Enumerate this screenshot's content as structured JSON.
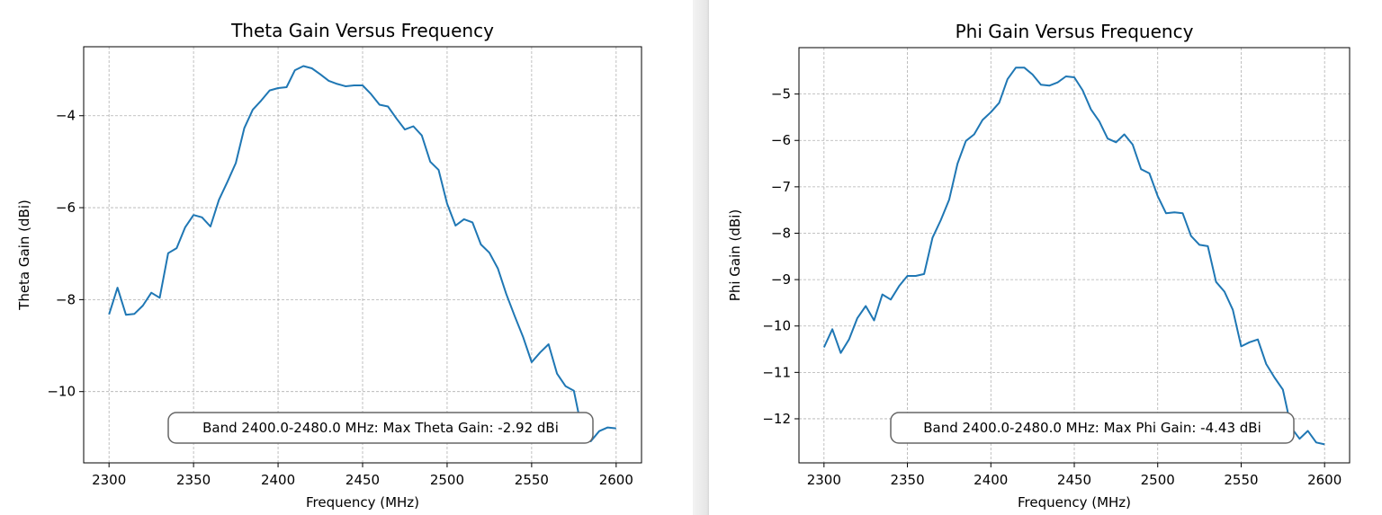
{
  "chart_data": [
    {
      "type": "line",
      "title": "Theta Gain Versus Frequency",
      "xlabel": "Frequency (MHz)",
      "ylabel": "Theta Gain (dBi)",
      "xlim": [
        2285,
        2615
      ],
      "ylim": [
        -11.55,
        -2.5
      ],
      "xticks": [
        2300,
        2350,
        2400,
        2450,
        2500,
        2550,
        2600
      ],
      "yticks": [
        -10,
        -8,
        -6,
        -4
      ],
      "grid": true,
      "line_color": "#1f77b4",
      "annotation": "Band 2400.0-2480.0 MHz: Max Theta Gain: -2.92 dBi",
      "annotation_position": "bottom-center",
      "x": [
        2300,
        2305,
        2310,
        2315,
        2320,
        2325,
        2330,
        2335,
        2340,
        2345,
        2350,
        2355,
        2360,
        2365,
        2370,
        2375,
        2380,
        2385,
        2390,
        2395,
        2400,
        2405,
        2410,
        2415,
        2420,
        2425,
        2430,
        2435,
        2440,
        2445,
        2450,
        2455,
        2460,
        2465,
        2470,
        2475,
        2480,
        2485,
        2490,
        2495,
        2500,
        2505,
        2510,
        2515,
        2520,
        2525,
        2530,
        2535,
        2540,
        2545,
        2550,
        2555,
        2560,
        2565,
        2570,
        2575,
        2580,
        2585,
        2590,
        2595,
        2600
      ],
      "y": [
        -8.32,
        -7.74,
        -8.33,
        -8.31,
        -8.13,
        -7.85,
        -7.96,
        -6.99,
        -6.88,
        -6.43,
        -6.16,
        -6.21,
        -6.41,
        -5.83,
        -5.44,
        -5.03,
        -4.27,
        -3.87,
        -3.67,
        -3.45,
        -3.4,
        -3.38,
        -3.01,
        -2.92,
        -2.97,
        -3.1,
        -3.24,
        -3.31,
        -3.36,
        -3.34,
        -3.34,
        -3.53,
        -3.76,
        -3.8,
        -4.06,
        -4.3,
        -4.23,
        -4.43,
        -5.0,
        -5.18,
        -5.91,
        -6.39,
        -6.25,
        -6.32,
        -6.8,
        -6.98,
        -7.32,
        -7.88,
        -8.36,
        -8.82,
        -9.36,
        -9.15,
        -8.97,
        -9.61,
        -9.88,
        -9.98,
        -10.87,
        -11.08,
        -10.86,
        -10.78,
        -10.8
      ]
    },
    {
      "type": "line",
      "title": "Phi Gain Versus Frequency",
      "xlabel": "Frequency (MHz)",
      "ylabel": "Phi Gain (dBi)",
      "xlim": [
        2285,
        2615
      ],
      "ylim": [
        -12.95,
        -4.0
      ],
      "xticks": [
        2300,
        2350,
        2400,
        2450,
        2500,
        2550,
        2600
      ],
      "yticks": [
        -12,
        -11,
        -10,
        -9,
        -8,
        -7,
        -6,
        -5
      ],
      "grid": true,
      "line_color": "#1f77b4",
      "annotation": "Band 2400.0-2480.0 MHz: Max Phi Gain: -4.43 dBi",
      "annotation_position": "bottom-center",
      "x": [
        2300,
        2305,
        2310,
        2315,
        2320,
        2325,
        2330,
        2335,
        2340,
        2345,
        2350,
        2355,
        2360,
        2365,
        2370,
        2375,
        2380,
        2385,
        2390,
        2395,
        2400,
        2405,
        2410,
        2415,
        2420,
        2425,
        2430,
        2435,
        2440,
        2445,
        2450,
        2455,
        2460,
        2465,
        2470,
        2475,
        2480,
        2485,
        2490,
        2495,
        2500,
        2505,
        2510,
        2515,
        2520,
        2525,
        2530,
        2535,
        2540,
        2545,
        2550,
        2555,
        2560,
        2565,
        2570,
        2575,
        2580,
        2585,
        2590,
        2595,
        2600
      ],
      "y": [
        -10.46,
        -10.07,
        -10.58,
        -10.29,
        -9.83,
        -9.57,
        -9.88,
        -9.32,
        -9.43,
        -9.14,
        -8.92,
        -8.92,
        -8.88,
        -8.1,
        -7.72,
        -7.28,
        -6.5,
        -6.01,
        -5.87,
        -5.56,
        -5.39,
        -5.19,
        -4.68,
        -4.43,
        -4.43,
        -4.58,
        -4.8,
        -4.82,
        -4.75,
        -4.62,
        -4.64,
        -4.92,
        -5.33,
        -5.59,
        -5.96,
        -6.04,
        -5.87,
        -6.09,
        -6.62,
        -6.71,
        -7.2,
        -7.57,
        -7.55,
        -7.57,
        -8.06,
        -8.25,
        -8.28,
        -9.05,
        -9.26,
        -9.65,
        -10.44,
        -10.35,
        -10.29,
        -10.82,
        -11.11,
        -11.37,
        -12.19,
        -12.43,
        -12.26,
        -12.51,
        -12.55
      ]
    }
  ]
}
